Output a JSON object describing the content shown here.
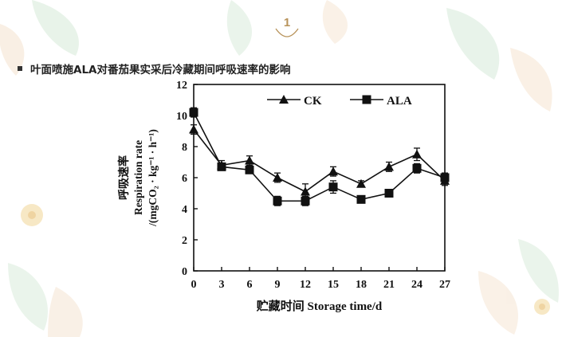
{
  "slide": {
    "number": "1",
    "heading": "叶面喷施ALA对番茄果实采后冷藏期间呼吸速率的影响"
  },
  "colors": {
    "accent": "#b8935a",
    "ink": "#111111",
    "leaf_green": "#cfe7d2",
    "leaf_orange": "#f6dcc4",
    "flower_yellow": "#f3d9a0"
  },
  "chart_data": {
    "type": "line",
    "x": [
      0,
      3,
      6,
      9,
      12,
      15,
      18,
      21,
      24,
      27
    ],
    "xticks": [
      "0",
      "3",
      "6",
      "9",
      "12",
      "15",
      "18",
      "21",
      "24",
      "27"
    ],
    "yticks": [
      "0",
      "2",
      "4",
      "6",
      "8",
      "10",
      "12"
    ],
    "xlim": [
      0,
      27
    ],
    "ylim": [
      0,
      12
    ],
    "xlabel": "贮藏时间 Storage time/d",
    "ylabel_lines": [
      "呼吸速率",
      "Respiration rate",
      "/(mgCO₂ · kg⁻¹ · h⁻¹)"
    ],
    "legend_position": "top-right",
    "grid": false,
    "series": [
      {
        "name": "CK",
        "marker": "triangle",
        "values": [
          9.1,
          6.8,
          7.1,
          6.0,
          5.1,
          6.4,
          5.6,
          6.7,
          7.5,
          5.8
        ],
        "errors": [
          0.3,
          0.3,
          0.3,
          0.3,
          0.5,
          0.3,
          0.2,
          0.3,
          0.4,
          0.3
        ]
      },
      {
        "name": "ALA",
        "marker": "square",
        "values": [
          10.2,
          6.7,
          6.5,
          4.5,
          4.5,
          5.4,
          4.6,
          5.0,
          6.6,
          6.0
        ],
        "errors": [
          0.3,
          0.2,
          0.2,
          0.3,
          0.3,
          0.4,
          0.2,
          0.2,
          0.3,
          0.3
        ]
      }
    ]
  }
}
